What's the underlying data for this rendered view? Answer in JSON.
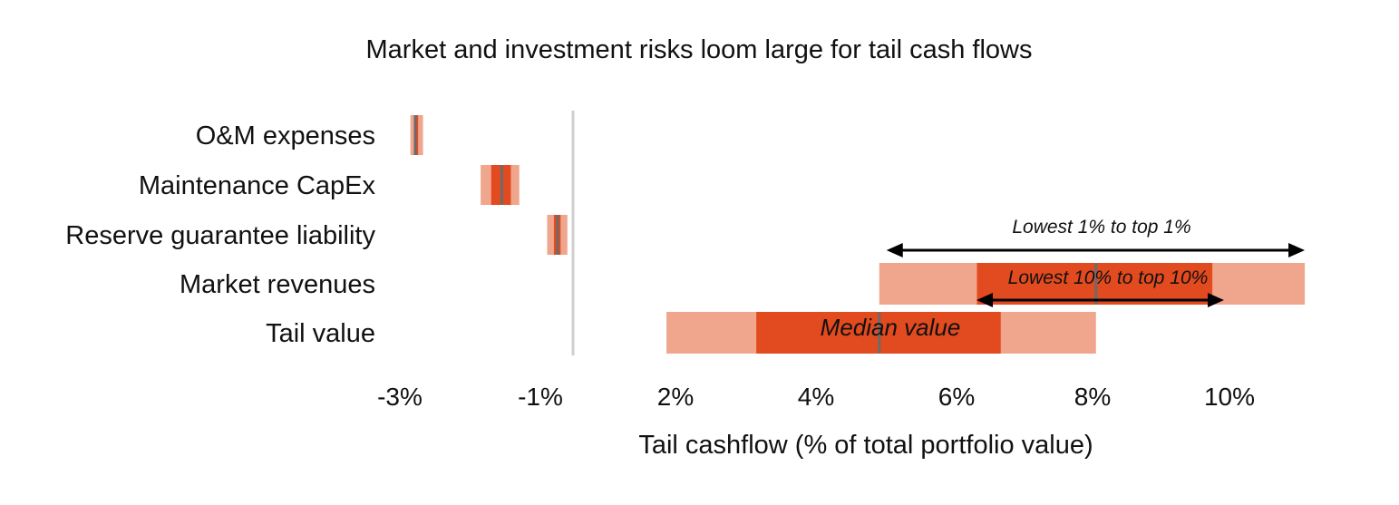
{
  "chart_data": {
    "type": "bar",
    "subtype": "floating-range",
    "title": "Market and investment risks loom large for tail cash flows",
    "xlabel": "Tail cashflow (% of total portfolio value)",
    "x_ticks": [
      {
        "value": -3,
        "label": "-3%"
      },
      {
        "value": -1,
        "label": "-1%"
      },
      {
        "value": 2,
        "label": "2%"
      },
      {
        "value": 4,
        "label": "4%"
      },
      {
        "value": 6,
        "label": "6%"
      },
      {
        "value": 8,
        "label": "8%"
      },
      {
        "value": 10,
        "label": "10%"
      }
    ],
    "grid": false,
    "colors": {
      "outer_range": "#f0a68d",
      "inner_range": "#e24a1f",
      "median": "#6b6b6b",
      "zero_line": "#cfcfcf",
      "text": "#111111"
    },
    "categories": [
      {
        "label": "O&M expenses",
        "p1": -2.85,
        "p10": -2.8,
        "median": -2.78,
        "p90": -2.74,
        "p99": -2.67
      },
      {
        "label": "Maintenance CapEx",
        "p1": -1.85,
        "p10": -1.7,
        "median": -1.55,
        "p90": -1.42,
        "p99": -1.3
      },
      {
        "label": "Reserve guarantee liability",
        "p1": -0.85,
        "p10": -0.7,
        "median": -0.62,
        "p90": -0.55,
        "p99": -0.4
      },
      {
        "label": "Market revenues",
        "p1": 4.9,
        "p10": 6.3,
        "median": 8.05,
        "p90": 9.75,
        "p99": 11.1
      },
      {
        "label": "Tail value",
        "p1": 1.8,
        "p10": 3.15,
        "median": 4.9,
        "p90": 6.65,
        "p99": 8.05
      }
    ],
    "annotations": {
      "p1_p99": "Lowest 1% to top 1%",
      "p10_p90": "Lowest 10% to top 10%",
      "median": "Median value"
    }
  }
}
